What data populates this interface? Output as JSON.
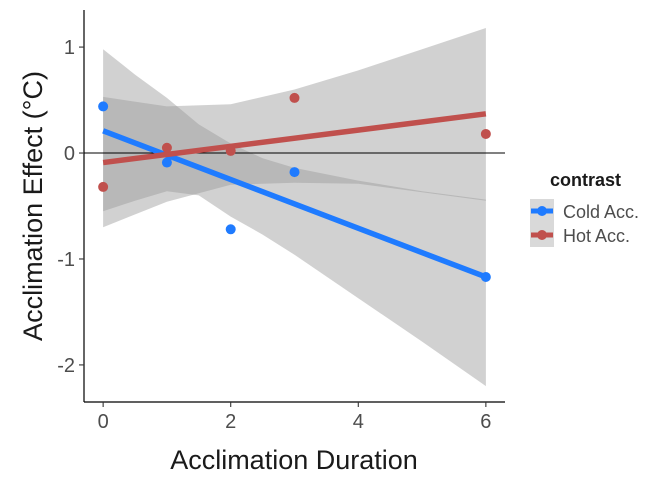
{
  "chart_data": {
    "type": "scatter",
    "xlabel": "Acclimation Duration",
    "ylabel": "Acclimation Effect (°C)",
    "xlim": [
      -0.3,
      6.3
    ],
    "ylim": [
      -2.35,
      1.35
    ],
    "x_ticks": [
      0,
      2,
      4,
      6
    ],
    "y_ticks": [
      1,
      0,
      -1,
      -2
    ],
    "x_tick_labels": [
      "0",
      "2",
      "4",
      "6"
    ],
    "y_tick_labels": [
      "1",
      "0",
      "-1",
      "-2"
    ],
    "reference_line_y": 0,
    "grid": false,
    "legend": {
      "title": "contrast",
      "position": "right"
    },
    "series": [
      {
        "name": "Cold Acc.",
        "color": "#1f7bff",
        "points": [
          {
            "x": 0,
            "y": 0.44
          },
          {
            "x": 1,
            "y": -0.09
          },
          {
            "x": 2,
            "y": -0.72
          },
          {
            "x": 3,
            "y": -0.18
          },
          {
            "x": 6,
            "y": -1.17
          }
        ],
        "fit": {
          "x": [
            0,
            6
          ],
          "y": [
            0.21,
            -1.17
          ]
        },
        "ci_band": [
          {
            "x": 0,
            "lo": -0.55,
            "hi": 0.98
          },
          {
            "x": 0.5,
            "lo": -0.45,
            "hi": 0.74
          },
          {
            "x": 1,
            "lo": -0.36,
            "hi": 0.52
          },
          {
            "x": 1.5,
            "lo": -0.4,
            "hi": 0.27
          },
          {
            "x": 2,
            "lo": -0.6,
            "hi": 0.09
          },
          {
            "x": 2.5,
            "lo": -0.77,
            "hi": -0.05
          },
          {
            "x": 3,
            "lo": -0.96,
            "hi": -0.14
          },
          {
            "x": 4,
            "lo": -1.37,
            "hi": -0.26
          },
          {
            "x": 5,
            "lo": -1.78,
            "hi": -0.36
          },
          {
            "x": 6,
            "lo": -2.2,
            "hi": -0.44
          }
        ]
      },
      {
        "name": "Hot Acc.",
        "color": "#c0504d",
        "points": [
          {
            "x": 0,
            "y": -0.32
          },
          {
            "x": 1,
            "y": 0.05
          },
          {
            "x": 2,
            "y": 0.02
          },
          {
            "x": 3,
            "y": 0.52
          },
          {
            "x": 6,
            "y": 0.18
          }
        ],
        "fit": {
          "x": [
            0,
            6
          ],
          "y": [
            -0.09,
            0.37
          ]
        },
        "ci_band": [
          {
            "x": 0,
            "lo": -0.7,
            "hi": 0.53
          },
          {
            "x": 1,
            "lo": -0.46,
            "hi": 0.44
          },
          {
            "x": 2,
            "lo": -0.3,
            "hi": 0.46
          },
          {
            "x": 3,
            "lo": -0.28,
            "hi": 0.6
          },
          {
            "x": 4,
            "lo": -0.29,
            "hi": 0.78
          },
          {
            "x": 5,
            "lo": -0.37,
            "hi": 0.98
          },
          {
            "x": 6,
            "lo": -0.45,
            "hi": 1.18
          }
        ]
      }
    ]
  }
}
